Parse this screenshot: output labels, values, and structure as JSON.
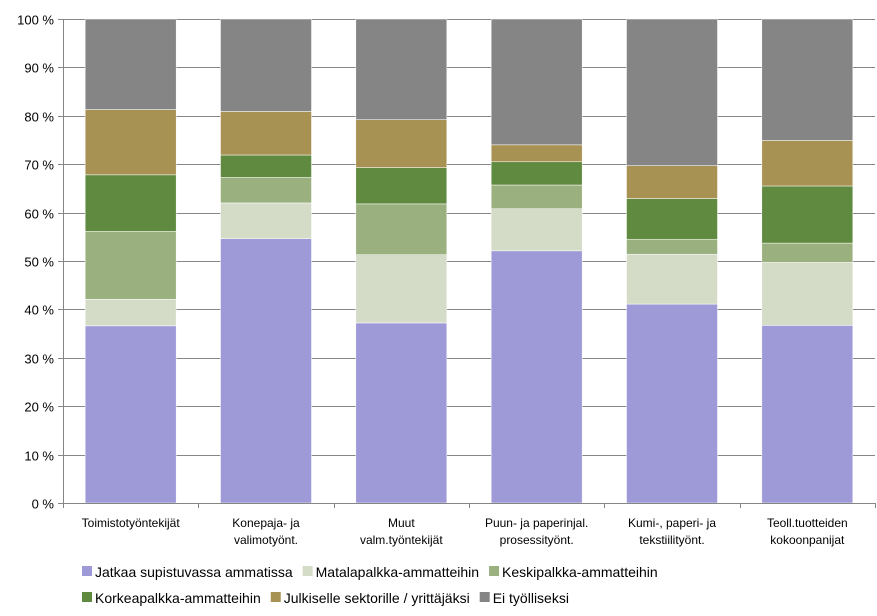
{
  "chart_data": {
    "type": "bar",
    "stacked": true,
    "percent": true,
    "ylim": [
      0,
      100
    ],
    "yticks": [
      0,
      10,
      20,
      30,
      40,
      50,
      60,
      70,
      80,
      90,
      100
    ],
    "ytick_labels": [
      "0 %",
      "10 %",
      "20 %",
      "30 %",
      "40 %",
      "50 %",
      "60 %",
      "70 %",
      "80 %",
      "90 %",
      "100 %"
    ],
    "grid": true,
    "legend_position": "bottom",
    "categories": [
      [
        "Toimistotyöntekijät"
      ],
      [
        "Konepaja- ja",
        "valimotyönt."
      ],
      [
        "Muut",
        "valm.työntekijät"
      ],
      [
        "Puun- ja paperinjal.",
        "prosessityönt."
      ],
      [
        "Kumi-, paperi- ja",
        "tekstiilityönt."
      ],
      [
        "Teoll.tuotteiden",
        "kokoonpanijat"
      ]
    ],
    "series": [
      {
        "name": "Jatkaa supistuvassa ammatissa",
        "color": "#9e9ad8",
        "values": [
          36.6,
          54.6,
          37.2,
          52.1,
          41.1,
          36.7
        ]
      },
      {
        "name": "Matalapalkka-ammatteihin",
        "color": "#d4dcc8",
        "values": [
          5.5,
          7.4,
          14.1,
          8.7,
          10.3,
          13.0
        ]
      },
      {
        "name": "Keskipalkka-ammatteihin",
        "color": "#9bb07f",
        "values": [
          14.0,
          5.3,
          10.5,
          4.9,
          3.1,
          4.0
        ]
      },
      {
        "name": "Korkeapalkka-ammatteihin",
        "color": "#5f8a3f",
        "values": [
          11.7,
          4.6,
          7.5,
          4.8,
          8.4,
          11.8
        ]
      },
      {
        "name": "Julkiselle sektorille / yrittäjäksi",
        "color": "#a89253",
        "values": [
          13.5,
          9.0,
          9.9,
          3.5,
          6.8,
          9.4
        ]
      },
      {
        "name": "Ei työlliseksi",
        "color": "#858585",
        "values": [
          18.7,
          19.1,
          20.8,
          26.0,
          30.3,
          25.1
        ]
      }
    ]
  }
}
